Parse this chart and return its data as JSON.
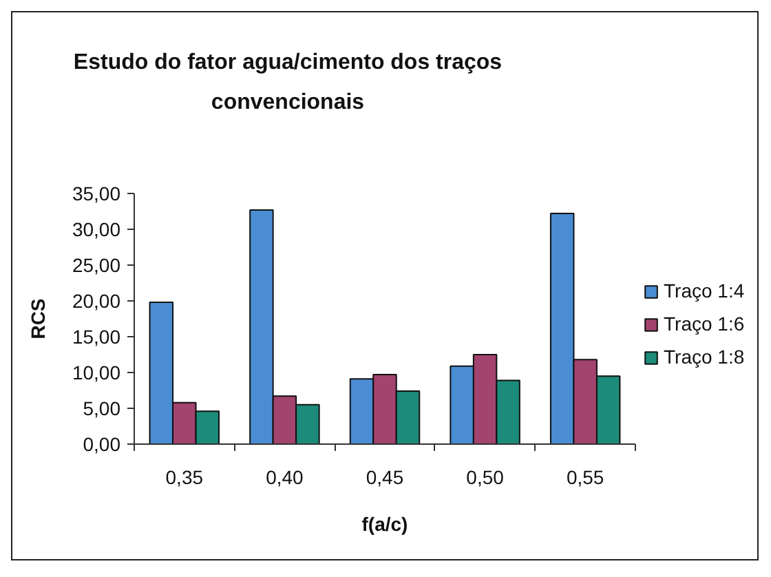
{
  "chart_data": {
    "type": "bar",
    "title": "Estudo do fator agua/cimento dos traços convencionais",
    "xlabel": "f(a/c)",
    "ylabel": "RCS",
    "categories": [
      "0,35",
      "0,40",
      "0,45",
      "0,50",
      "0,55"
    ],
    "series": [
      {
        "name": "Traço 1:4",
        "color": "#4a8dd3",
        "values": [
          19.8,
          32.7,
          9.1,
          10.9,
          32.2
        ]
      },
      {
        "name": "Traço 1:6",
        "color": "#a3436f",
        "values": [
          5.8,
          6.7,
          9.7,
          12.5,
          11.8
        ]
      },
      {
        "name": "Traço 1:8",
        "color": "#1d8b79",
        "values": [
          4.6,
          5.5,
          7.4,
          8.9,
          9.5
        ]
      }
    ],
    "ylim": [
      0,
      35
    ],
    "yticks": [
      {
        "value": 0,
        "label": "0,00"
      },
      {
        "value": 5,
        "label": "5,00"
      },
      {
        "value": 10,
        "label": "10,00"
      },
      {
        "value": 15,
        "label": "15,00"
      },
      {
        "value": 20,
        "label": "20,00"
      },
      {
        "value": 25,
        "label": "25,00"
      },
      {
        "value": 30,
        "label": "30,00"
      },
      {
        "value": 35,
        "label": "35,00"
      }
    ],
    "grid": false,
    "legend": "right"
  }
}
